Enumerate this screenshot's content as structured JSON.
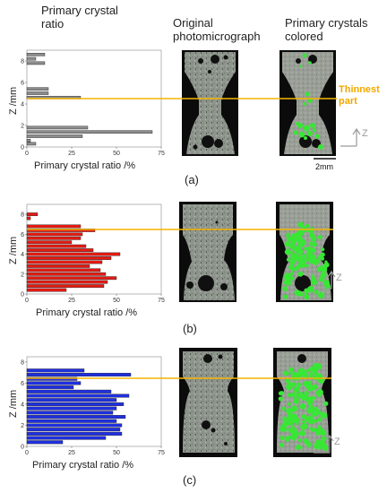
{
  "headers": {
    "col1": [
      "Primary crystal",
      "ratio"
    ],
    "col2": [
      "Original",
      "photomicrograph"
    ],
    "col3": [
      "Primary crystals",
      "colored"
    ]
  },
  "annotations": {
    "thinnest": [
      "Thinnest",
      "part"
    ],
    "scale_bar": "2mm",
    "z_axis_label": "Z"
  },
  "colors": {
    "panel_a": "#8c8c8c",
    "panel_b": "#e41b13",
    "panel_c": "#1f2fe0",
    "guide_line": "#f5b400",
    "crystals": "#38e635"
  },
  "chart_data": [
    {
      "type": "bar",
      "orientation": "horizontal",
      "caption": "(a)",
      "xlabel": "Primary crystal ratio /%",
      "ylabel": "Z /mm",
      "xlim": [
        0,
        75
      ],
      "ylim": [
        0,
        9
      ],
      "xticks": [
        "0",
        "25",
        "50",
        "75"
      ],
      "yticks": [
        "0",
        "2",
        "4",
        "6",
        "8"
      ],
      "z": [
        0.3,
        0.6,
        1.0,
        1.4,
        1.8,
        2.2,
        2.6,
        3.0,
        3.4,
        3.8,
        4.2,
        4.6,
        5.0,
        5.4,
        5.8,
        6.2,
        6.6,
        7.0,
        7.4,
        7.8,
        8.2,
        8.6
      ],
      "values": [
        5,
        2,
        31,
        70,
        34,
        0,
        0,
        0,
        0,
        0,
        0,
        30,
        12,
        12,
        0,
        0,
        0,
        0,
        0,
        10,
        5,
        10
      ]
    },
    {
      "type": "bar",
      "orientation": "horizontal",
      "caption": "(b)",
      "xlabel": "Primary crystal ratio /%",
      "ylabel": "Z /mm",
      "xlim": [
        0,
        75
      ],
      "ylim": [
        0,
        9
      ],
      "xticks": [
        "0",
        "25",
        "50",
        "75"
      ],
      "yticks": [
        "0",
        "2",
        "4",
        "6",
        "8"
      ],
      "z": [
        0.4,
        0.8,
        1.2,
        1.6,
        2.0,
        2.4,
        2.8,
        3.2,
        3.6,
        4.0,
        4.4,
        4.8,
        5.2,
        5.6,
        6.0,
        6.4,
        6.8,
        7.2,
        7.6,
        8.0
      ],
      "values": [
        22,
        43,
        45,
        50,
        44,
        41,
        35,
        42,
        47,
        52,
        37,
        33,
        25,
        30,
        31,
        38,
        30,
        0,
        2,
        6
      ]
    },
    {
      "type": "bar",
      "orientation": "horizontal",
      "caption": "(c)",
      "xlabel": "Primary crystal ratio /%",
      "ylabel": "Z /mm",
      "xlim": [
        0,
        75
      ],
      "ylim": [
        0,
        8.5
      ],
      "xticks": [
        "0",
        "25",
        "50",
        "75"
      ],
      "yticks": [
        "0",
        "2",
        "4",
        "6",
        "8"
      ],
      "z": [
        0.4,
        0.8,
        1.2,
        1.6,
        2.0,
        2.4,
        2.8,
        3.2,
        3.6,
        4.0,
        4.4,
        4.8,
        5.2,
        5.6,
        6.0,
        6.4,
        6.8,
        7.2
      ],
      "values": [
        20,
        44,
        53,
        52,
        53,
        50,
        55,
        48,
        50,
        54,
        50,
        57,
        47,
        26,
        30,
        28,
        58,
        32
      ]
    }
  ]
}
